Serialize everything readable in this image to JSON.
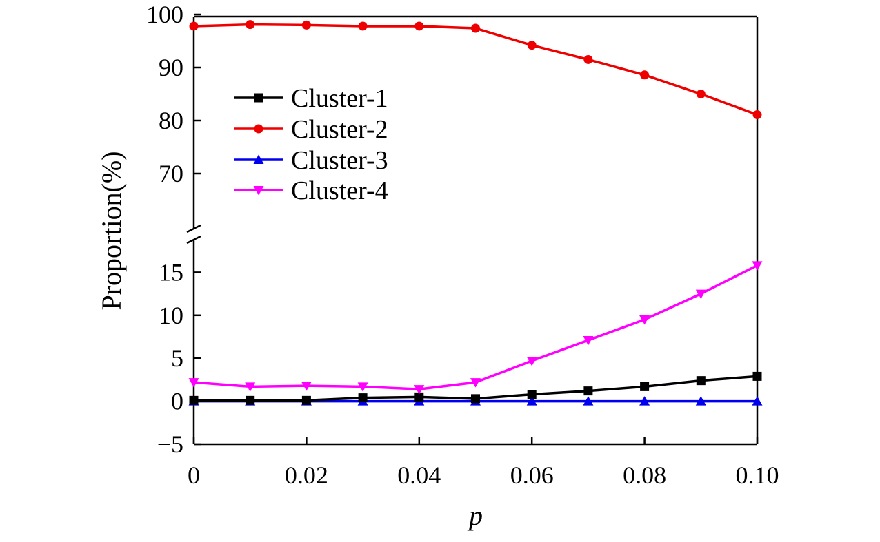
{
  "chart_data": {
    "type": "line",
    "title": "",
    "xlabel": "p",
    "ylabel": "Proportion(%)",
    "x": [
      0,
      0.01,
      0.02,
      0.03,
      0.04,
      0.05,
      0.06,
      0.07,
      0.08,
      0.09,
      0.1
    ],
    "xlim": [
      0,
      0.1
    ],
    "x_ticks": [
      {
        "value": 0,
        "label": "0"
      },
      {
        "value": 0.02,
        "label": "0.02"
      },
      {
        "value": 0.04,
        "label": "0.04"
      },
      {
        "value": 0.06,
        "label": "0.06"
      },
      {
        "value": 0.08,
        "label": "0.08"
      },
      {
        "value": 0.1,
        "label": "0.10"
      }
    ],
    "y_axis_break": true,
    "upper_ylim": [
      60,
      100
    ],
    "upper_y_ticks": [
      {
        "value": 70,
        "label": "70"
      },
      {
        "value": 80,
        "label": "80"
      },
      {
        "value": 90,
        "label": "90"
      },
      {
        "value": 100,
        "label": "100"
      }
    ],
    "lower_ylim": [
      -5,
      20
    ],
    "lower_y_ticks": [
      {
        "value": -5,
        "label": "−5"
      },
      {
        "value": 0,
        "label": "0"
      },
      {
        "value": 5,
        "label": "5"
      },
      {
        "value": 10,
        "label": "10"
      },
      {
        "value": 15,
        "label": "15"
      }
    ],
    "legend_position": "upper-left",
    "series": [
      {
        "name": "Cluster-1",
        "color": "#000000",
        "marker": "square",
        "values": [
          0.1,
          0.1,
          0.1,
          0.4,
          0.5,
          0.3,
          0.8,
          1.2,
          1.7,
          2.4,
          2.9
        ]
      },
      {
        "name": "Cluster-2",
        "color": "#ee0000",
        "marker": "circle",
        "values": [
          97.8,
          98.1,
          98.0,
          97.8,
          97.8,
          97.4,
          94.2,
          91.5,
          88.6,
          85.0,
          81.1
        ]
      },
      {
        "name": "Cluster-3",
        "color": "#0000ee",
        "marker": "triangle-up",
        "values": [
          0,
          0,
          0,
          0,
          0,
          0,
          0,
          0,
          0,
          0,
          0
        ]
      },
      {
        "name": "Cluster-4",
        "color": "#ff00ff",
        "marker": "triangle-down",
        "values": [
          2.2,
          1.7,
          1.8,
          1.7,
          1.4,
          2.2,
          4.7,
          7.1,
          9.5,
          12.5,
          15.8
        ]
      }
    ]
  }
}
